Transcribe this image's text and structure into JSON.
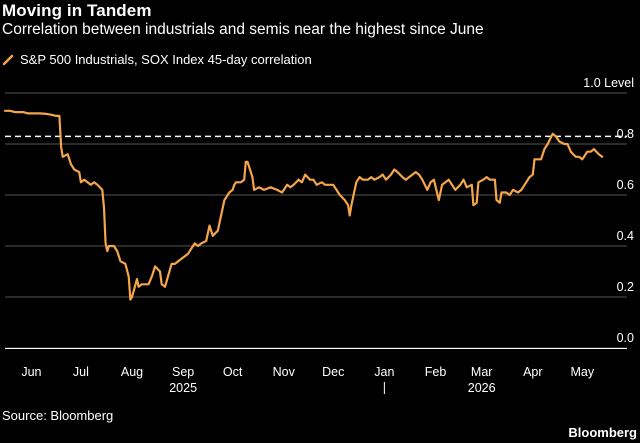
{
  "title": "Moving in Tandem",
  "subtitle": "Correlation between industrials and semis near the highest since June",
  "source": "Source: Bloomberg",
  "brand": "Bloomberg",
  "colors": {
    "background": "#000000",
    "series": "#f5a54a",
    "grid": "#555555",
    "reference_line": "#ffffff",
    "text": "#ffffff"
  },
  "chart_data": {
    "type": "line",
    "title": "Moving in Tandem",
    "subtitle": "Correlation between industrials and semis near the highest since June",
    "y_unit_label": "1.0 Level",
    "ylim": [
      0,
      1.0
    ],
    "y_ticks": [
      0.0,
      0.2,
      0.4,
      0.6,
      0.8
    ],
    "y_tick_labels": [
      "0.0",
      "0.2",
      "0.4",
      "0.6",
      "0.8"
    ],
    "reference_line": 0.83,
    "grid": true,
    "x_axis": "date",
    "x_range": [
      "2025-05-16",
      "2026-05-19"
    ],
    "x_tick_labels": [
      {
        "label": "Jun",
        "date": "2025-06-01"
      },
      {
        "label": "Jul",
        "date": "2025-07-01"
      },
      {
        "label": "Aug",
        "date": "2025-08-01"
      },
      {
        "label": "Sep",
        "date": "2025-09-01"
      },
      {
        "label": "Oct",
        "date": "2025-10-01"
      },
      {
        "label": "Nov",
        "date": "2025-11-01"
      },
      {
        "label": "Dec",
        "date": "2025-12-01"
      },
      {
        "label": "Jan",
        "date": "2026-01-01"
      },
      {
        "label": "Feb",
        "date": "2026-02-01"
      },
      {
        "label": "Mar",
        "date": "2026-03-01"
      },
      {
        "label": "Apr",
        "date": "2026-04-01"
      },
      {
        "label": "May",
        "date": "2026-05-01"
      }
    ],
    "year_labels": [
      {
        "label": "2025",
        "date": "2025-09-01"
      },
      {
        "label": "2026",
        "date": "2026-03-01"
      }
    ],
    "series": [
      {
        "name": "S&P 500 Industrials, SOX Index 45-day correlation",
        "points": [
          [
            "2025-05-16",
            0.93
          ],
          [
            "2025-05-19",
            0.93
          ],
          [
            "2025-05-22",
            0.925
          ],
          [
            "2025-05-27",
            0.925
          ],
          [
            "2025-05-30",
            0.92
          ],
          [
            "2025-06-03",
            0.92
          ],
          [
            "2025-06-06",
            0.92
          ],
          [
            "2025-06-10",
            0.918
          ],
          [
            "2025-06-13",
            0.915
          ],
          [
            "2025-06-16",
            0.91
          ],
          [
            "2025-06-18",
            0.91
          ],
          [
            "2025-06-19",
            0.79
          ],
          [
            "2025-06-20",
            0.75
          ],
          [
            "2025-06-23",
            0.76
          ],
          [
            "2025-06-25",
            0.72
          ],
          [
            "2025-06-27",
            0.7
          ],
          [
            "2025-06-30",
            0.69
          ],
          [
            "2025-07-01",
            0.65
          ],
          [
            "2025-07-03",
            0.66
          ],
          [
            "2025-07-07",
            0.64
          ],
          [
            "2025-07-09",
            0.65
          ],
          [
            "2025-07-11",
            0.64
          ],
          [
            "2025-07-14",
            0.62
          ],
          [
            "2025-07-15",
            0.55
          ],
          [
            "2025-07-16",
            0.41
          ],
          [
            "2025-07-17",
            0.38
          ],
          [
            "2025-07-18",
            0.4
          ],
          [
            "2025-07-21",
            0.4
          ],
          [
            "2025-07-23",
            0.38
          ],
          [
            "2025-07-25",
            0.34
          ],
          [
            "2025-07-28",
            0.33
          ],
          [
            "2025-07-30",
            0.28
          ],
          [
            "2025-07-31",
            0.19
          ],
          [
            "2025-08-01",
            0.2
          ],
          [
            "2025-08-04",
            0.27
          ],
          [
            "2025-08-05",
            0.24
          ],
          [
            "2025-08-07",
            0.25
          ],
          [
            "2025-08-11",
            0.25
          ],
          [
            "2025-08-13",
            0.28
          ],
          [
            "2025-08-15",
            0.32
          ],
          [
            "2025-08-18",
            0.3
          ],
          [
            "2025-08-19",
            0.25
          ],
          [
            "2025-08-21",
            0.24
          ],
          [
            "2025-08-25",
            0.33
          ],
          [
            "2025-08-27",
            0.33
          ],
          [
            "2025-08-29",
            0.34
          ],
          [
            "2025-09-02",
            0.36
          ],
          [
            "2025-09-04",
            0.37
          ],
          [
            "2025-09-08",
            0.41
          ],
          [
            "2025-09-10",
            0.4
          ],
          [
            "2025-09-12",
            0.41
          ],
          [
            "2025-09-15",
            0.42
          ],
          [
            "2025-09-17",
            0.48
          ],
          [
            "2025-09-19",
            0.44
          ],
          [
            "2025-09-22",
            0.46
          ],
          [
            "2025-09-24",
            0.52
          ],
          [
            "2025-09-26",
            0.58
          ],
          [
            "2025-09-29",
            0.61
          ],
          [
            "2025-10-01",
            0.62
          ],
          [
            "2025-10-02",
            0.64
          ],
          [
            "2025-10-03",
            0.65
          ],
          [
            "2025-10-06",
            0.65
          ],
          [
            "2025-10-08",
            0.66
          ],
          [
            "2025-10-09",
            0.73
          ],
          [
            "2025-10-10",
            0.73
          ],
          [
            "2025-10-13",
            0.67
          ],
          [
            "2025-10-14",
            0.62
          ],
          [
            "2025-10-17",
            0.63
          ],
          [
            "2025-10-20",
            0.62
          ],
          [
            "2025-10-24",
            0.63
          ],
          [
            "2025-10-28",
            0.62
          ],
          [
            "2025-10-31",
            0.61
          ],
          [
            "2025-11-03",
            0.64
          ],
          [
            "2025-11-05",
            0.63
          ],
          [
            "2025-11-07",
            0.64
          ],
          [
            "2025-11-10",
            0.66
          ],
          [
            "2025-11-12",
            0.65
          ],
          [
            "2025-11-14",
            0.68
          ],
          [
            "2025-11-17",
            0.66
          ],
          [
            "2025-11-19",
            0.66
          ],
          [
            "2025-11-21",
            0.64
          ],
          [
            "2025-11-24",
            0.65
          ],
          [
            "2025-11-26",
            0.64
          ],
          [
            "2025-11-28",
            0.64
          ],
          [
            "2025-12-01",
            0.64
          ],
          [
            "2025-12-03",
            0.62
          ],
          [
            "2025-12-05",
            0.6
          ],
          [
            "2025-12-08",
            0.58
          ],
          [
            "2025-12-10",
            0.56
          ],
          [
            "2025-12-11",
            0.52
          ],
          [
            "2025-12-12",
            0.56
          ],
          [
            "2025-12-15",
            0.65
          ],
          [
            "2025-12-17",
            0.67
          ],
          [
            "2025-12-19",
            0.66
          ],
          [
            "2025-12-22",
            0.66
          ],
          [
            "2025-12-24",
            0.67
          ],
          [
            "2025-12-26",
            0.66
          ],
          [
            "2025-12-29",
            0.67
          ],
          [
            "2025-12-31",
            0.68
          ],
          [
            "2026-01-02",
            0.66
          ],
          [
            "2026-01-05",
            0.68
          ],
          [
            "2026-01-07",
            0.7
          ],
          [
            "2026-01-09",
            0.69
          ],
          [
            "2026-01-12",
            0.67
          ],
          [
            "2026-01-14",
            0.66
          ],
          [
            "2026-01-16",
            0.67
          ],
          [
            "2026-01-20",
            0.69
          ],
          [
            "2026-01-22",
            0.68
          ],
          [
            "2026-01-24",
            0.66
          ],
          [
            "2026-01-27",
            0.62
          ],
          [
            "2026-01-29",
            0.65
          ],
          [
            "2026-01-31",
            0.66
          ],
          [
            "2026-02-03",
            0.58
          ],
          [
            "2026-02-05",
            0.64
          ],
          [
            "2026-02-09",
            0.66
          ],
          [
            "2026-02-11",
            0.64
          ],
          [
            "2026-02-13",
            0.62
          ],
          [
            "2026-02-16",
            0.64
          ],
          [
            "2026-02-18",
            0.66
          ],
          [
            "2026-02-20",
            0.63
          ],
          [
            "2026-02-23",
            0.64
          ],
          [
            "2026-02-24",
            0.56
          ],
          [
            "2026-02-26",
            0.57
          ],
          [
            "2026-02-27",
            0.65
          ],
          [
            "2026-03-02",
            0.66
          ],
          [
            "2026-03-04",
            0.67
          ],
          [
            "2026-03-06",
            0.66
          ],
          [
            "2026-03-09",
            0.66
          ],
          [
            "2026-03-10",
            0.58
          ],
          [
            "2026-03-12",
            0.57
          ],
          [
            "2026-03-13",
            0.61
          ],
          [
            "2026-03-16",
            0.61
          ],
          [
            "2026-03-18",
            0.6
          ],
          [
            "2026-03-20",
            0.62
          ],
          [
            "2026-03-23",
            0.61
          ],
          [
            "2026-03-25",
            0.62
          ],
          [
            "2026-03-27",
            0.64
          ],
          [
            "2026-03-30",
            0.67
          ],
          [
            "2026-04-01",
            0.68
          ],
          [
            "2026-04-02",
            0.74
          ],
          [
            "2026-04-06",
            0.74
          ],
          [
            "2026-04-08",
            0.78
          ],
          [
            "2026-04-10",
            0.8
          ],
          [
            "2026-04-13",
            0.84
          ],
          [
            "2026-04-15",
            0.83
          ],
          [
            "2026-04-17",
            0.81
          ],
          [
            "2026-04-20",
            0.8
          ],
          [
            "2026-04-22",
            0.8
          ],
          [
            "2026-04-24",
            0.77
          ],
          [
            "2026-04-27",
            0.75
          ],
          [
            "2026-04-29",
            0.75
          ],
          [
            "2026-05-01",
            0.74
          ],
          [
            "2026-05-04",
            0.77
          ],
          [
            "2026-05-06",
            0.77
          ],
          [
            "2026-05-08",
            0.78
          ],
          [
            "2026-05-11",
            0.76
          ],
          [
            "2026-05-13",
            0.75
          ]
        ]
      }
    ]
  }
}
